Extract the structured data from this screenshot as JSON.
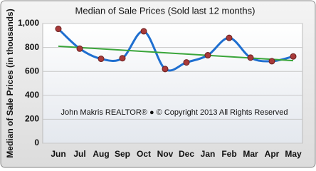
{
  "chart_data": {
    "type": "line",
    "title": "Median of Sale Prices (Sold last 12 months)",
    "y_label": "Median of Sale Prices (in thousands)",
    "annotation": "John Makris REALTOR®  ●  © Copyright 2013 All Rights Reserved",
    "categories": [
      "Jun",
      "Jul",
      "Aug",
      "Sep",
      "Oct",
      "Nov",
      "Dec",
      "Jan",
      "Feb",
      "Mar",
      "Apr",
      "May"
    ],
    "series": [
      {
        "color": "#1f6fd0",
        "marker_color": "#a83a3a",
        "values": [
          955,
          790,
          705,
          710,
          935,
          620,
          675,
          735,
          880,
          715,
          685,
          725
        ]
      }
    ],
    "trend": {
      "color": "#3aa53a",
      "start": 810,
      "end": 690
    },
    "ylim": [
      0,
      1000
    ],
    "yticks": [
      0,
      200,
      400,
      600,
      800,
      {
        "value": 1000,
        "label": "1,000"
      }
    ],
    "grid": true
  }
}
